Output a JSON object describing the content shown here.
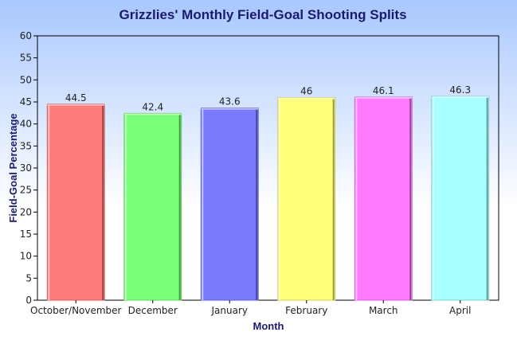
{
  "chart_data": {
    "type": "bar",
    "title": "Grizzlies' Monthly Field-Goal Shooting Splits",
    "xlabel": "Month",
    "ylabel": "Field-Goal Percentage",
    "categories": [
      "October/November",
      "December",
      "January",
      "February",
      "March",
      "April"
    ],
    "values": [
      44.5,
      42.4,
      43.6,
      46,
      46.1,
      46.3
    ],
    "value_labels": [
      "44.5",
      "42.4",
      "43.6",
      "46",
      "46.1",
      "46.3"
    ],
    "colors": [
      "#ff7a7a",
      "#7aff7a",
      "#7a7aff",
      "#ffff7a",
      "#ff7aff",
      "#a8ffff"
    ],
    "ylim": [
      0,
      60
    ],
    "yticks": [
      0,
      5,
      10,
      15,
      20,
      25,
      30,
      35,
      40,
      45,
      50,
      55,
      60
    ],
    "grid": false,
    "legend": "none",
    "background_gradient": [
      "#a9c8ff",
      "#ffffff"
    ]
  }
}
